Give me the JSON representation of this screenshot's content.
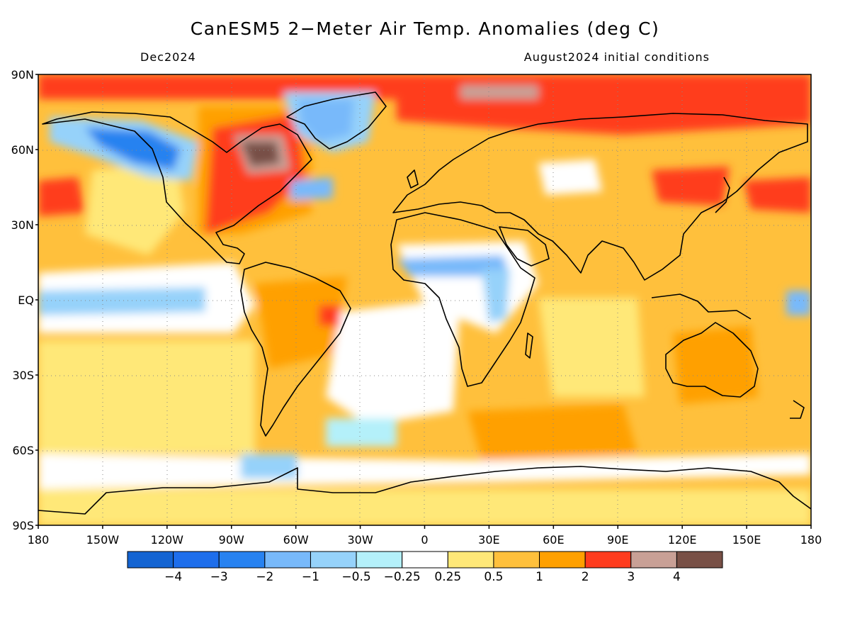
{
  "header": {
    "title": "CanESM5 2−Meter Air Temp. Anomalies (deg C)",
    "valid": "Dec2024",
    "init": "August2024 initial conditions"
  },
  "map": {
    "projection": "cylindrical equidistant",
    "lon_range": [
      -180,
      180
    ],
    "lat_range": [
      -90,
      90
    ],
    "grid": true,
    "lat_labels": [
      "90N",
      "60N",
      "30N",
      "EQ",
      "30S",
      "60S",
      "90S"
    ],
    "lon_labels": [
      "180",
      "150W",
      "120W",
      "90W",
      "60W",
      "30W",
      "0",
      "30E",
      "60E",
      "90E",
      "120E",
      "150E",
      "180"
    ]
  },
  "colorbar": {
    "colors": [
      "#1464d2",
      "#1e6eeb",
      "#2882f0",
      "#78b9fa",
      "#96d2fa",
      "#b4f0fa",
      "#ffffff",
      "#ffe878",
      "#ffc03c",
      "#ffa000",
      "#ff3c1e",
      "#c8a096",
      "#785046"
    ],
    "labels": [
      "−4",
      "−3",
      "−2",
      "−1",
      "−0.5",
      "−0.25",
      "0.25",
      "0.5",
      "1",
      "2",
      "3",
      "4"
    ]
  }
}
